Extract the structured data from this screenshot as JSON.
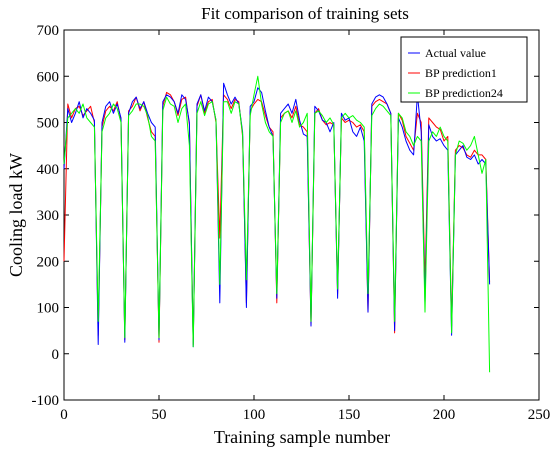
{
  "chart_data": {
    "type": "line",
    "title": "Fit comparison of training sets",
    "xlabel": "Training sample number",
    "ylabel": "Cooling load kW",
    "xlim": [
      0,
      250
    ],
    "ylim": [
      -100,
      700
    ],
    "xticks": [
      0,
      50,
      100,
      150,
      200,
      250
    ],
    "yticks": [
      -100,
      0,
      100,
      200,
      300,
      400,
      500,
      600,
      700
    ],
    "grid": false,
    "legend_position": "top-right",
    "x": [
      0,
      2,
      4,
      6,
      8,
      10,
      12,
      14,
      16,
      18,
      20,
      22,
      24,
      26,
      28,
      30,
      32,
      34,
      36,
      38,
      40,
      42,
      44,
      46,
      48,
      50,
      52,
      54,
      56,
      58,
      60,
      62,
      64,
      66,
      68,
      70,
      72,
      74,
      76,
      78,
      80,
      82,
      84,
      86,
      88,
      90,
      92,
      94,
      96,
      98,
      100,
      102,
      104,
      106,
      108,
      110,
      112,
      114,
      116,
      118,
      120,
      122,
      124,
      126,
      128,
      130,
      132,
      134,
      136,
      138,
      140,
      142,
      144,
      146,
      148,
      150,
      152,
      154,
      156,
      158,
      160,
      162,
      164,
      166,
      168,
      170,
      172,
      174,
      176,
      178,
      180,
      182,
      184,
      186,
      188,
      190,
      192,
      194,
      196,
      198,
      200,
      202,
      204,
      206,
      208,
      210,
      212,
      214,
      216,
      218,
      220,
      222,
      224
    ],
    "series": [
      {
        "name": "Actual value",
        "color": "#0000ff",
        "values": [
          400,
          530,
          500,
          520,
          545,
          510,
          530,
          520,
          505,
          20,
          500,
          535,
          545,
          520,
          540,
          510,
          25,
          520,
          545,
          555,
          530,
          545,
          520,
          500,
          490,
          30,
          545,
          560,
          555,
          545,
          520,
          560,
          550,
          500,
          15,
          540,
          560,
          525,
          555,
          545,
          505,
          110,
          585,
          560,
          540,
          555,
          540,
          480,
          100,
          535,
          545,
          575,
          565,
          525,
          490,
          470,
          120,
          520,
          530,
          540,
          520,
          550,
          505,
          475,
          470,
          60,
          535,
          525,
          505,
          500,
          480,
          500,
          120,
          520,
          505,
          510,
          480,
          470,
          490,
          460,
          90,
          540,
          555,
          560,
          555,
          540,
          520,
          50,
          510,
          490,
          460,
          440,
          430,
          560,
          480,
          110,
          495,
          470,
          460,
          465,
          450,
          440,
          40,
          430,
          440,
          450,
          425,
          420,
          430,
          410,
          420,
          410,
          150
        ]
      },
      {
        "name": "BP prediction1",
        "color": "#ff0000",
        "values": [
          200,
          540,
          510,
          530,
          535,
          515,
          525,
          535,
          500,
          40,
          490,
          525,
          535,
          525,
          545,
          505,
          30,
          525,
          535,
          555,
          525,
          545,
          510,
          480,
          470,
          25,
          535,
          565,
          560,
          545,
          515,
          550,
          555,
          495,
          20,
          535,
          560,
          520,
          545,
          550,
          500,
          250,
          560,
          550,
          530,
          550,
          545,
          470,
          110,
          525,
          540,
          550,
          545,
          515,
          490,
          480,
          110,
          510,
          520,
          525,
          510,
          535,
          495,
          490,
          480,
          60,
          520,
          530,
          505,
          495,
          500,
          495,
          130,
          510,
          500,
          505,
          500,
          490,
          495,
          480,
          90,
          535,
          545,
          550,
          545,
          540,
          520,
          45,
          520,
          505,
          470,
          455,
          440,
          520,
          500,
          150,
          510,
          500,
          490,
          485,
          460,
          470,
          60,
          440,
          450,
          445,
          430,
          425,
          440,
          430,
          430,
          420,
          155
        ]
      },
      {
        "name": "BP prediction24",
        "color": "#00ff00",
        "values": [
          410,
          510,
          520,
          530,
          520,
          540,
          510,
          500,
          490,
          70,
          480,
          510,
          520,
          540,
          530,
          500,
          35,
          515,
          525,
          540,
          540,
          535,
          515,
          470,
          460,
          35,
          525,
          555,
          540,
          535,
          500,
          530,
          540,
          450,
          15,
          520,
          545,
          515,
          540,
          545,
          505,
          150,
          545,
          545,
          520,
          545,
          540,
          475,
          160,
          515,
          560,
          600,
          540,
          500,
          480,
          470,
          130,
          500,
          520,
          525,
          500,
          525,
          490,
          500,
          520,
          70,
          520,
          525,
          515,
          500,
          510,
          495,
          140,
          510,
          520,
          510,
          515,
          505,
          500,
          490,
          130,
          515,
          530,
          540,
          535,
          525,
          515,
          70,
          520,
          510,
          480,
          470,
          450,
          470,
          460,
          90,
          460,
          480,
          470,
          490,
          470,
          460,
          45,
          430,
          460,
          455,
          440,
          450,
          470,
          430,
          390,
          420,
          -40
        ]
      }
    ]
  }
}
